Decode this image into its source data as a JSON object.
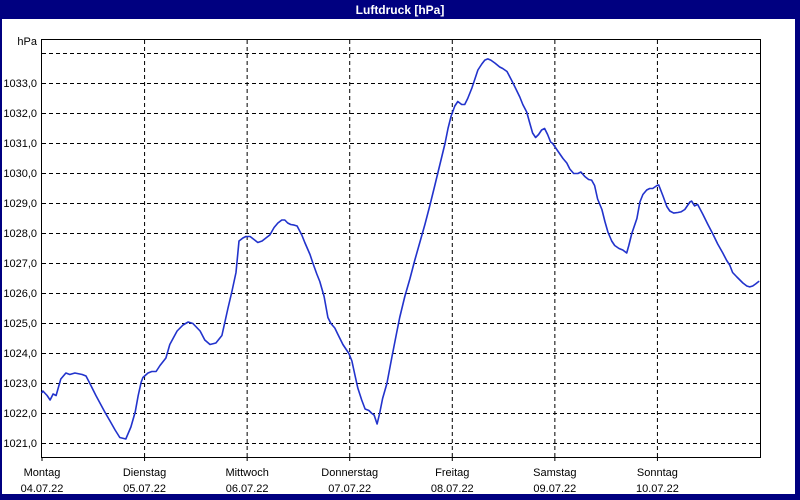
{
  "window": {
    "title": "Luftdruck [hPa]"
  },
  "colors": {
    "frame": "#000080",
    "title_text": "#ffffff",
    "plot_background": "#ffffff",
    "grid": "#000000",
    "line": "#2233cc"
  },
  "chart_data": {
    "type": "line",
    "title": "Luftdruck [hPa]",
    "ylabel": "hPa",
    "xlabel": "",
    "grid": "dashed",
    "legend_position": "none",
    "ylim": [
      1020.55,
      1034.45
    ],
    "xlim_hours": [
      0,
      168
    ],
    "y_ticks": [
      {
        "value": 1021,
        "label": "1021,0"
      },
      {
        "value": 1022,
        "label": "1022,0"
      },
      {
        "value": 1023,
        "label": "1023,0"
      },
      {
        "value": 1024,
        "label": "1024,0"
      },
      {
        "value": 1025,
        "label": "1025,0"
      },
      {
        "value": 1026,
        "label": "1026,0"
      },
      {
        "value": 1027,
        "label": "1027,0"
      },
      {
        "value": 1028,
        "label": "1028,0"
      },
      {
        "value": 1029,
        "label": "1029,0"
      },
      {
        "value": 1030,
        "label": "1030,0"
      },
      {
        "value": 1031,
        "label": "1031,0"
      },
      {
        "value": 1032,
        "label": "1032,0"
      },
      {
        "value": 1033,
        "label": "1033,0"
      }
    ],
    "y_extra_gridlines": [
      1034
    ],
    "x_ticks": [
      {
        "hour": 0,
        "weekday": "Montag",
        "date": "04.07.22"
      },
      {
        "hour": 24,
        "weekday": "Dienstag",
        "date": "05.07.22"
      },
      {
        "hour": 48,
        "weekday": "Mittwoch",
        "date": "06.07.22"
      },
      {
        "hour": 72,
        "weekday": "Donnerstag",
        "date": "07.07.22"
      },
      {
        "hour": 96,
        "weekday": "Freitag",
        "date": "08.07.22"
      },
      {
        "hour": 120,
        "weekday": "Samstag",
        "date": "09.07.22"
      },
      {
        "hour": 144,
        "weekday": "Sonntag",
        "date": "10.07.22"
      }
    ],
    "series": [
      {
        "name": "Luftdruck",
        "unit": "hPa",
        "color": "#2233cc",
        "points": [
          [
            0,
            1022.7
          ],
          [
            0.2,
            1022.75
          ],
          [
            1.2,
            1022.6
          ],
          [
            1.9,
            1022.45
          ],
          [
            2.6,
            1022.65
          ],
          [
            3.3,
            1022.6
          ],
          [
            4.4,
            1023.15
          ],
          [
            5.6,
            1023.35
          ],
          [
            6.5,
            1023.3
          ],
          [
            7.7,
            1023.35
          ],
          [
            9.4,
            1023.3
          ],
          [
            10.3,
            1023.25
          ],
          [
            11.2,
            1023.0
          ],
          [
            12.6,
            1022.6
          ],
          [
            14.7,
            1022.05
          ],
          [
            15.9,
            1021.75
          ],
          [
            17.1,
            1021.45
          ],
          [
            18.2,
            1021.2
          ],
          [
            19.6,
            1021.15
          ],
          [
            20.8,
            1021.55
          ],
          [
            21.8,
            1022.05
          ],
          [
            22.5,
            1022.6
          ],
          [
            23.2,
            1023.05
          ],
          [
            23.6,
            1023.2
          ],
          [
            24.8,
            1023.35
          ],
          [
            25.7,
            1023.4
          ],
          [
            26.7,
            1023.4
          ],
          [
            27.6,
            1023.6
          ],
          [
            29,
            1023.85
          ],
          [
            29.9,
            1024.3
          ],
          [
            31.6,
            1024.75
          ],
          [
            33,
            1024.95
          ],
          [
            34.2,
            1025.05
          ],
          [
            35.3,
            1025.0
          ],
          [
            37,
            1024.75
          ],
          [
            38.1,
            1024.45
          ],
          [
            39.3,
            1024.3
          ],
          [
            40.7,
            1024.35
          ],
          [
            42.1,
            1024.6
          ],
          [
            43.5,
            1025.5
          ],
          [
            44.4,
            1026.05
          ],
          [
            45.4,
            1026.7
          ],
          [
            46.1,
            1027.75
          ],
          [
            47,
            1027.85
          ],
          [
            47.7,
            1027.9
          ],
          [
            48.7,
            1027.9
          ],
          [
            49.6,
            1027.8
          ],
          [
            50.5,
            1027.7
          ],
          [
            51.5,
            1027.75
          ],
          [
            52.4,
            1027.85
          ],
          [
            53.3,
            1027.95
          ],
          [
            54.3,
            1028.2
          ],
          [
            55.2,
            1028.35
          ],
          [
            56.1,
            1028.45
          ],
          [
            56.8,
            1028.45
          ],
          [
            57.5,
            1028.35
          ],
          [
            58.2,
            1028.3
          ],
          [
            59,
            1028.28
          ],
          [
            59.7,
            1028.25
          ],
          [
            60.8,
            1027.95
          ],
          [
            61.5,
            1027.7
          ],
          [
            62.7,
            1027.3
          ],
          [
            63.4,
            1027.0
          ],
          [
            64.3,
            1026.65
          ],
          [
            65,
            1026.4
          ],
          [
            66,
            1025.9
          ],
          [
            66.9,
            1025.2
          ],
          [
            67.6,
            1025.0
          ],
          [
            68.5,
            1024.85
          ],
          [
            69.2,
            1024.65
          ],
          [
            70.4,
            1024.3
          ],
          [
            71.8,
            1024.0
          ],
          [
            72.5,
            1023.75
          ],
          [
            73.2,
            1023.3
          ],
          [
            73.9,
            1022.85
          ],
          [
            74.8,
            1022.45
          ],
          [
            75.6,
            1022.15
          ],
          [
            76.5,
            1022.1
          ],
          [
            77.2,
            1022.0
          ],
          [
            77.7,
            1021.95
          ],
          [
            78.4,
            1021.65
          ],
          [
            79,
            1022.0
          ],
          [
            79.7,
            1022.5
          ],
          [
            80.7,
            1023.0
          ],
          [
            81.9,
            1023.9
          ],
          [
            83,
            1024.7
          ],
          [
            83.7,
            1025.2
          ],
          [
            84.9,
            1025.9
          ],
          [
            86.1,
            1026.5
          ],
          [
            87.2,
            1027.1
          ],
          [
            88.4,
            1027.7
          ],
          [
            89.6,
            1028.3
          ],
          [
            90.7,
            1028.9
          ],
          [
            91.9,
            1029.6
          ],
          [
            93.1,
            1030.3
          ],
          [
            94.3,
            1031.0
          ],
          [
            95,
            1031.5
          ],
          [
            95.7,
            1031.9
          ],
          [
            96.6,
            1032.25
          ],
          [
            97.3,
            1032.4
          ],
          [
            98.2,
            1032.3
          ],
          [
            98.9,
            1032.3
          ],
          [
            99.6,
            1032.5
          ],
          [
            100.6,
            1032.85
          ],
          [
            101.3,
            1033.15
          ],
          [
            102,
            1033.45
          ],
          [
            102.9,
            1033.65
          ],
          [
            103.6,
            1033.78
          ],
          [
            104.3,
            1033.82
          ],
          [
            105,
            1033.78
          ],
          [
            106,
            1033.68
          ],
          [
            107.1,
            1033.55
          ],
          [
            107.8,
            1033.5
          ],
          [
            108.8,
            1033.4
          ],
          [
            109.9,
            1033.1
          ],
          [
            110.6,
            1032.9
          ],
          [
            111.8,
            1032.55
          ],
          [
            112.5,
            1032.3
          ],
          [
            113.4,
            1032.05
          ],
          [
            114.1,
            1031.7
          ],
          [
            114.8,
            1031.35
          ],
          [
            115.5,
            1031.2
          ],
          [
            116.2,
            1031.3
          ],
          [
            116.9,
            1031.45
          ],
          [
            117.6,
            1031.5
          ],
          [
            118.3,
            1031.3
          ],
          [
            119,
            1031.05
          ],
          [
            119.5,
            1031.0
          ],
          [
            120.7,
            1030.75
          ],
          [
            121.9,
            1030.5
          ],
          [
            122.8,
            1030.35
          ],
          [
            123.5,
            1030.15
          ],
          [
            124.4,
            1030.0
          ],
          [
            125.4,
            1030.0
          ],
          [
            126.1,
            1030.05
          ],
          [
            127,
            1029.9
          ],
          [
            127.9,
            1029.8
          ],
          [
            128.6,
            1029.78
          ],
          [
            129.3,
            1029.6
          ],
          [
            130,
            1029.15
          ],
          [
            131,
            1028.8
          ],
          [
            131.7,
            1028.4
          ],
          [
            132.4,
            1028.05
          ],
          [
            133.3,
            1027.75
          ],
          [
            134,
            1027.6
          ],
          [
            135,
            1027.5
          ],
          [
            135.9,
            1027.45
          ],
          [
            136.8,
            1027.35
          ],
          [
            137.3,
            1027.6
          ],
          [
            138,
            1028.0
          ],
          [
            139.2,
            1028.5
          ],
          [
            139.9,
            1029.05
          ],
          [
            140.6,
            1029.3
          ],
          [
            141.5,
            1029.45
          ],
          [
            142.2,
            1029.5
          ],
          [
            142.9,
            1029.5
          ],
          [
            143.9,
            1029.6
          ],
          [
            144.3,
            1029.62
          ],
          [
            145.3,
            1029.25
          ],
          [
            146.2,
            1028.9
          ],
          [
            146.9,
            1028.75
          ],
          [
            147.8,
            1028.68
          ],
          [
            148.8,
            1028.7
          ],
          [
            149.5,
            1028.72
          ],
          [
            150.4,
            1028.8
          ],
          [
            151.6,
            1029.05
          ],
          [
            152,
            1029.08
          ],
          [
            152.7,
            1028.92
          ],
          [
            153.4,
            1028.97
          ],
          [
            154.6,
            1028.65
          ],
          [
            155.8,
            1028.3
          ],
          [
            156.9,
            1028.0
          ],
          [
            158.1,
            1027.65
          ],
          [
            159.3,
            1027.35
          ],
          [
            160.2,
            1027.1
          ],
          [
            160.9,
            1026.95
          ],
          [
            161.6,
            1026.7
          ],
          [
            162.6,
            1026.55
          ],
          [
            163.3,
            1026.45
          ],
          [
            164,
            1026.35
          ],
          [
            164.9,
            1026.25
          ],
          [
            165.6,
            1026.22
          ],
          [
            166.3,
            1026.25
          ],
          [
            167,
            1026.32
          ],
          [
            167.7,
            1026.4
          ]
        ]
      }
    ]
  }
}
